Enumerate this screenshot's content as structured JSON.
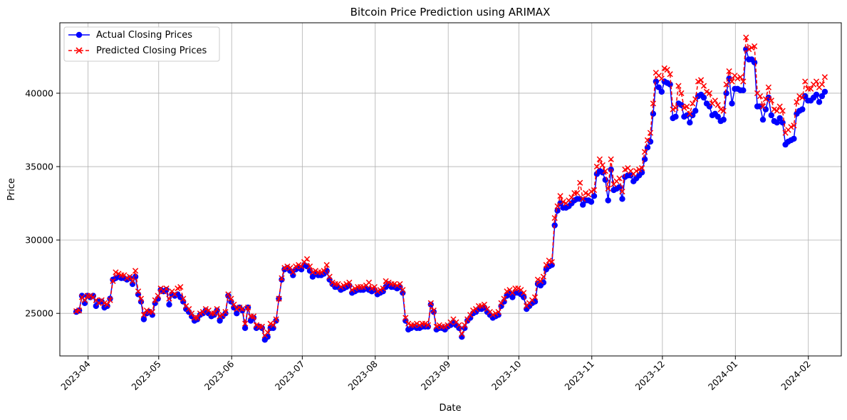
{
  "chart_data": {
    "type": "line",
    "title": "Bitcoin Price Prediction using ARIMAX",
    "xlabel": "Date",
    "ylabel": "Price",
    "x_start": "2023-03-27",
    "x_end": "2024-02-08",
    "xlim": [
      "2023-03-20",
      "2024-02-15"
    ],
    "ylim": [
      22100,
      44800
    ],
    "x_ticks": [
      "2023-04",
      "2023-05",
      "2023-06",
      "2023-07",
      "2023-08",
      "2023-09",
      "2023-10",
      "2023-11",
      "2023-12",
      "2024-01",
      "2024-02"
    ],
    "y_ticks": [
      25000,
      30000,
      35000,
      40000
    ],
    "grid": true,
    "legend_position": "top-left",
    "series": [
      {
        "name": "Actual Closing Prices",
        "color": "#0000ff",
        "style": "solid-circle",
        "values": [
          25100,
          25200,
          26200,
          25700,
          26200,
          26100,
          26200,
          25500,
          25800,
          25800,
          25400,
          25500,
          26000,
          27300,
          27400,
          27500,
          27400,
          27400,
          27300,
          27400,
          27000,
          27500,
          26300,
          25800,
          24600,
          25000,
          25100,
          24900,
          25700,
          26000,
          26600,
          26500,
          26600,
          25600,
          26300,
          26200,
          26300,
          26100,
          25800,
          25300,
          25100,
          24800,
          24500,
          24600,
          24900,
          25000,
          25200,
          25000,
          24800,
          24900,
          25200,
          24500,
          24800,
          25000,
          26200,
          25800,
          25400,
          25000,
          25400,
          25200,
          24000,
          25400,
          24500,
          24700,
          24000,
          24100,
          24000,
          23200,
          23400,
          24000,
          24000,
          24500,
          26000,
          27300,
          28000,
          28100,
          27900,
          27600,
          28000,
          28100,
          28000,
          28300,
          28200,
          27900,
          27500,
          27700,
          27600,
          27600,
          27700,
          27900,
          27300,
          27000,
          26800,
          26800,
          26600,
          26700,
          26800,
          26900,
          26400,
          26500,
          26600,
          26600,
          26600,
          26700,
          26600,
          26500,
          26600,
          26300,
          26400,
          26500,
          26800,
          27000,
          26800,
          26800,
          26700,
          26800,
          26400,
          24500,
          23900,
          24000,
          24100,
          24000,
          24000,
          24100,
          24100,
          24100,
          25600,
          25100,
          23900,
          24000,
          24000,
          23900,
          24100,
          24200,
          24400,
          24200,
          24000,
          23400,
          24000,
          24500,
          24700,
          25000,
          25100,
          25300,
          25300,
          25400,
          25100,
          24900,
          24700,
          24800,
          24900,
          25500,
          25800,
          26200,
          26400,
          26100,
          26400,
          26400,
          26300,
          26100,
          25300,
          25500,
          25700,
          25800,
          27000,
          26900,
          27100,
          28000,
          28200,
          28300,
          31000,
          32000,
          32500,
          32200,
          32200,
          32300,
          32500,
          32700,
          32800,
          32800,
          32400,
          32700,
          32700,
          32600,
          33000,
          34500,
          34700,
          34600,
          34100,
          32700,
          34800,
          33400,
          33500,
          33600,
          32800,
          34300,
          34400,
          34400,
          34000,
          34200,
          34400,
          34600,
          35500,
          36300,
          36700,
          38600,
          40800,
          40400,
          40100,
          40800,
          40700,
          40600,
          38300,
          38400,
          39300,
          39200,
          38400,
          38500,
          38000,
          38500,
          38800,
          39800,
          39900,
          39700,
          39300,
          39100,
          38500,
          38600,
          38400,
          38100,
          38200,
          40000,
          41000,
          39300,
          40300,
          40300,
          40200,
          40200,
          43000,
          42300,
          42300,
          42100,
          39100,
          39100,
          38200,
          38900,
          39700,
          38500,
          38100,
          38000,
          38300,
          38000,
          36500,
          36700,
          36800,
          36900,
          38600,
          38800,
          38900,
          39800,
          39500,
          39500,
          39700,
          39900,
          39400,
          39800,
          40100
        ]
      },
      {
        "name": "Predicted Closing Prices",
        "color": "#ff0000",
        "style": "dashed-x",
        "values": [
          25150,
          25200,
          26100,
          25900,
          26200,
          26200,
          26100,
          25900,
          25700,
          25900,
          25700,
          25600,
          25900,
          27200,
          27800,
          27700,
          27600,
          27600,
          27400,
          27500,
          27200,
          27900,
          26500,
          26000,
          24900,
          25200,
          25100,
          25100,
          25900,
          26200,
          26700,
          26500,
          26700,
          26000,
          26500,
          26300,
          26700,
          26800,
          26000,
          25500,
          25300,
          25000,
          24700,
          24700,
          25000,
          25100,
          25300,
          25200,
          25000,
          25000,
          25300,
          24800,
          24900,
          25100,
          26300,
          26000,
          25600,
          25300,
          25400,
          25300,
          24300,
          25400,
          24800,
          24800,
          24200,
          24100,
          24100,
          23500,
          23700,
          24300,
          24200,
          24600,
          26000,
          27400,
          28100,
          28200,
          28100,
          27800,
          28200,
          28300,
          28200,
          28500,
          28700,
          28200,
          27800,
          27900,
          27800,
          27800,
          27900,
          28300,
          27500,
          27100,
          27000,
          27000,
          26800,
          26900,
          27000,
          27100,
          26600,
          26700,
          26800,
          26800,
          26800,
          26900,
          27100,
          26700,
          26800,
          26500,
          26600,
          26700,
          27200,
          27100,
          27000,
          27000,
          26900,
          27000,
          26600,
          24700,
          24300,
          24200,
          24200,
          24300,
          24200,
          24300,
          24300,
          24200,
          25700,
          25200,
          24100,
          24200,
          24100,
          24100,
          24200,
          24400,
          24600,
          24400,
          24200,
          23600,
          24200,
          24600,
          24900,
          25200,
          25300,
          25500,
          25500,
          25600,
          25300,
          25100,
          24900,
          25000,
          25100,
          25700,
          26000,
          26500,
          26600,
          26400,
          26700,
          26700,
          26600,
          26400,
          25500,
          25700,
          25900,
          26100,
          27300,
          27200,
          27500,
          28300,
          28600,
          28500,
          31500,
          32300,
          33000,
          32600,
          32500,
          32700,
          32900,
          33200,
          33200,
          33900,
          32800,
          33200,
          33100,
          33300,
          33400,
          35000,
          35500,
          35100,
          34700,
          33500,
          35500,
          33800,
          34000,
          34200,
          33300,
          34800,
          34900,
          34700,
          34500,
          34700,
          34800,
          34900,
          36000,
          36800,
          37300,
          39300,
          41400,
          41200,
          41000,
          41700,
          41600,
          41300,
          38900,
          39000,
          40500,
          40000,
          39000,
          39100,
          38600,
          39300,
          39600,
          40800,
          40900,
          40500,
          40100,
          40000,
          39300,
          39500,
          39200,
          38900,
          38800,
          40600,
          41500,
          40800,
          41200,
          41000,
          41100,
          40800,
          43800,
          43000,
          43100,
          43200,
          40000,
          39800,
          39100,
          39600,
          40400,
          39500,
          38900,
          38800,
          39100,
          38800,
          37300,
          37500,
          37700,
          37800,
          39400,
          39800,
          39700,
          40800,
          40300,
          40300,
          40600,
          40800,
          40400,
          40600,
          41100
        ]
      }
    ]
  }
}
